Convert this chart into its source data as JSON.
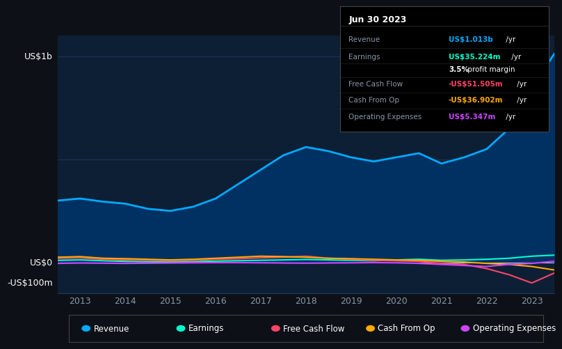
{
  "bg_color": "#0d1117",
  "plot_bg_color": "#0d1f35",
  "grid_color": "#1e3a5f",
  "text_color": "#ffffff",
  "dim_text_color": "#8899aa",
  "ylabel_top": "US$1b",
  "ylabel_zero": "US$0",
  "ylabel_bottom": "-US$100m",
  "ylim": [
    -150000000,
    1100000000
  ],
  "years": [
    2012.5,
    2013.0,
    2013.5,
    2014.0,
    2014.5,
    2015.0,
    2015.5,
    2016.0,
    2016.5,
    2017.0,
    2017.5,
    2018.0,
    2018.5,
    2019.0,
    2019.5,
    2020.0,
    2020.5,
    2021.0,
    2021.5,
    2022.0,
    2022.5,
    2023.0,
    2023.5
  ],
  "revenue": [
    300000000,
    310000000,
    295000000,
    285000000,
    260000000,
    250000000,
    270000000,
    310000000,
    380000000,
    450000000,
    520000000,
    560000000,
    540000000,
    510000000,
    490000000,
    510000000,
    530000000,
    480000000,
    510000000,
    550000000,
    650000000,
    850000000,
    1013000000
  ],
  "earnings": [
    10000000,
    12000000,
    8000000,
    5000000,
    3000000,
    2000000,
    4000000,
    6000000,
    8000000,
    10000000,
    12000000,
    14000000,
    12000000,
    10000000,
    8000000,
    12000000,
    15000000,
    10000000,
    12000000,
    15000000,
    20000000,
    30000000,
    35224000
  ],
  "free_cash_flow": [
    20000000,
    22000000,
    15000000,
    12000000,
    10000000,
    8000000,
    10000000,
    15000000,
    18000000,
    22000000,
    25000000,
    30000000,
    20000000,
    15000000,
    10000000,
    8000000,
    5000000,
    -5000000,
    -10000000,
    -30000000,
    -60000000,
    -100000000,
    -51505000
  ],
  "cash_from_op": [
    25000000,
    28000000,
    20000000,
    18000000,
    15000000,
    12000000,
    15000000,
    20000000,
    25000000,
    30000000,
    28000000,
    25000000,
    20000000,
    18000000,
    15000000,
    12000000,
    10000000,
    5000000,
    2000000,
    -5000000,
    -10000000,
    -20000000,
    -36902000
  ],
  "operating_expenses": [
    -5000000,
    -3000000,
    -4000000,
    -5000000,
    -4000000,
    -3000000,
    -2000000,
    -1000000,
    -1000000,
    -2000000,
    -3000000,
    -4000000,
    -3000000,
    -2000000,
    -1000000,
    -2000000,
    -5000000,
    -10000000,
    -15000000,
    -20000000,
    -10000000,
    -5000000,
    5347000
  ],
  "revenue_color": "#00aaff",
  "earnings_color": "#00ffcc",
  "free_cash_flow_color": "#ff4466",
  "cash_from_op_color": "#ffaa00",
  "operating_expenses_color": "#cc44ff",
  "revenue_fill_color": "#003366",
  "tooltip_title": "Jun 30 2023",
  "xtick_years": [
    2013,
    2014,
    2015,
    2016,
    2017,
    2018,
    2019,
    2020,
    2021,
    2022,
    2023
  ],
  "legend_colors": [
    "#00aaff",
    "#00ffcc",
    "#ff4466",
    "#ffaa00",
    "#cc44ff"
  ],
  "legend_labels": [
    "Revenue",
    "Earnings",
    "Free Cash Flow",
    "Cash From Op",
    "Operating Expenses"
  ]
}
